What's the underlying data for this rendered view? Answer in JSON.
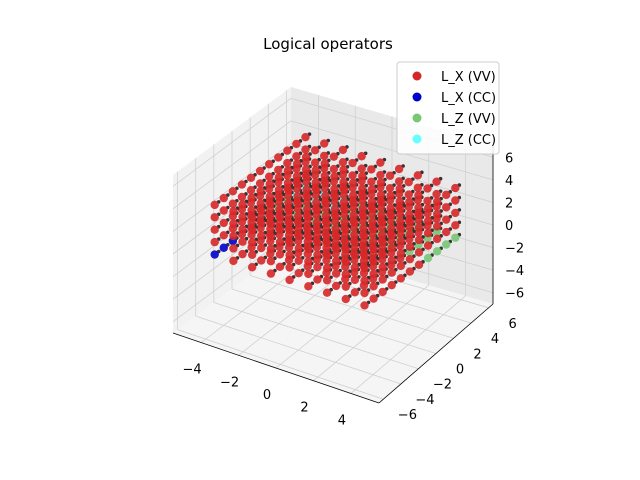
{
  "chart_data": {
    "type": "scatter",
    "projection": "3d",
    "title": "Logical operators",
    "xlabel": "",
    "ylabel": "",
    "zlabel": "",
    "xlim": [
      -5.5,
      5.5
    ],
    "ylim": [
      -6.5,
      6.5
    ],
    "zlim": [
      -7,
      7
    ],
    "xticks": [
      "−4",
      "−2",
      "0",
      "2",
      "4"
    ],
    "yticks": [
      "−6",
      "−4",
      "−2",
      "0",
      "2",
      "4",
      "6"
    ],
    "zticks": [
      "−6",
      "−4",
      "−2",
      "0",
      "2",
      "4",
      "6"
    ],
    "grid": true,
    "legend_position": "upper-right",
    "series": [
      {
        "name": "L_X (VV)",
        "color": "#d62728",
        "description": "dense lattice covering the full cube volume"
      },
      {
        "name": "L_X (CC)",
        "color": "#0000cc",
        "description": "few points near x ≈ -5 edge"
      },
      {
        "name": "L_Z (VV)",
        "color": "#77c777",
        "description": "points on lower/right faces"
      },
      {
        "name": "L_Z (CC)",
        "color": "#66ffff",
        "description": "few points near bottom face"
      }
    ],
    "background_points": {
      "color": "#333333",
      "description": "small dark lattice points"
    }
  }
}
